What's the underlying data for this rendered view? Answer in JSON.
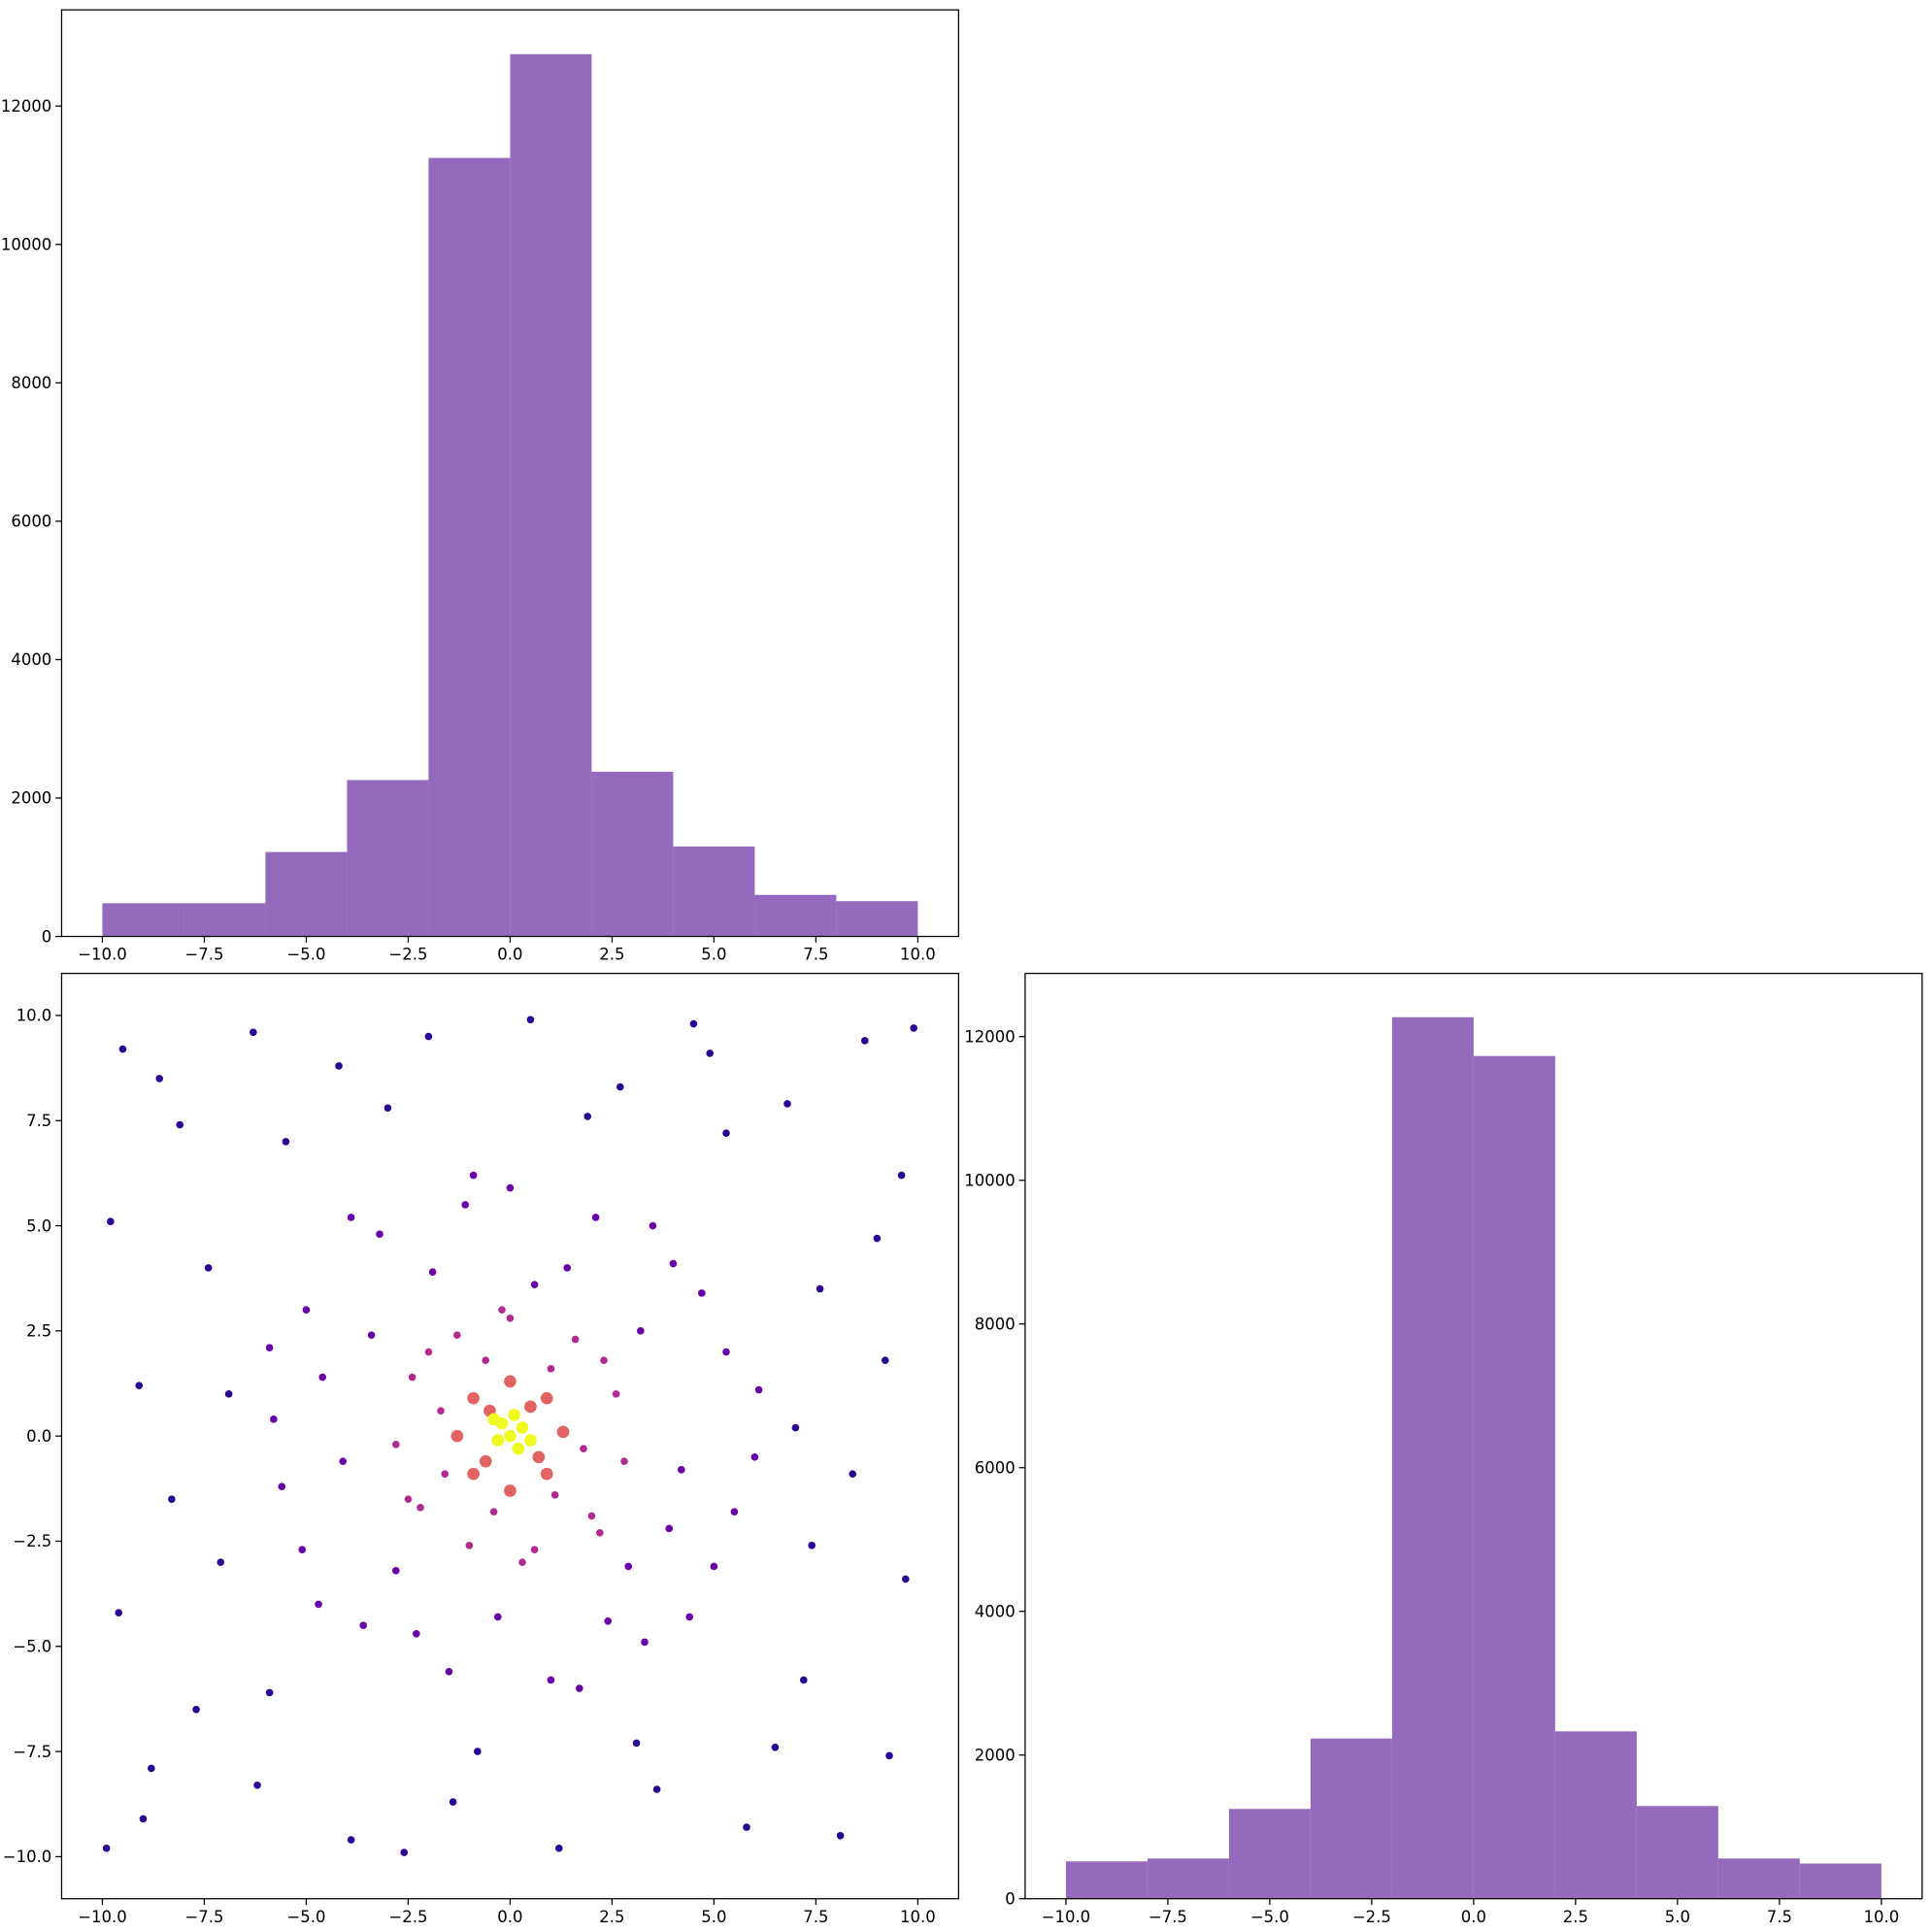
{
  "chart_data": [
    {
      "type": "histogram",
      "color": "#9467bd",
      "bins": [
        -10,
        -8,
        -6,
        -4,
        -2,
        0,
        2,
        4,
        6,
        8,
        10
      ],
      "values": [
        480,
        480,
        1220,
        2260,
        11250,
        12750,
        2380,
        1300,
        600,
        510
      ],
      "xlim": [
        -11,
        11
      ],
      "ylim": [
        0,
        13390
      ],
      "xticks": [
        {
          "value": -10,
          "label": "−10.0"
        },
        {
          "value": -7.5,
          "label": "−7.5"
        },
        {
          "value": -5,
          "label": "−5.0"
        },
        {
          "value": -2.5,
          "label": "−2.5"
        },
        {
          "value": 0,
          "label": "0.0"
        },
        2.5,
        {
          "value": 5,
          "label": "5.0"
        },
        7.5,
        {
          "value": 10,
          "label": "10.0"
        }
      ],
      "yticks": [
        0,
        2000,
        4000,
        6000,
        8000,
        10000,
        12000
      ]
    },
    {
      "type": "scatter",
      "xlim": [
        -11,
        11
      ],
      "ylim": [
        -11,
        11
      ],
      "xticks": [
        {
          "value": -10,
          "label": "−10.0"
        },
        {
          "value": -7.5,
          "label": "−7.5"
        },
        {
          "value": -5,
          "label": "−5.0"
        },
        {
          "value": -2.5,
          "label": "−2.5"
        },
        {
          "value": 0,
          "label": "0.0"
        },
        2.5,
        {
          "value": 5,
          "label": "5.0"
        },
        7.5,
        {
          "value": 10,
          "label": "10.0"
        }
      ],
      "yticks": [
        {
          "value": -10,
          "label": "−10.0"
        },
        {
          "value": -7.5,
          "label": "−7.5"
        },
        {
          "value": -5,
          "label": "−5.0"
        },
        {
          "value": -2.5,
          "label": "−2.5"
        },
        {
          "value": 0,
          "label": "0.0"
        },
        2.5,
        {
          "value": 5,
          "label": "5.0"
        },
        7.5,
        {
          "value": 10,
          "label": "10.0"
        }
      ],
      "series": [
        {
          "color": "#2a0593",
          "x": [
            -9.5,
            -8.1,
            -6.3,
            -4.2,
            -2.0,
            0.5,
            2.7,
            4.9,
            6.8,
            8.7,
            9.6,
            -9.8,
            -7.4,
            7.6,
            9.2,
            -9.1,
            -8.3,
            8.4,
            9.7,
            -9.6,
            -7.7,
            7.2,
            9.3,
            -9.0,
            -6.2,
            -3.9,
            -1.4,
            1.2,
            3.6,
            5.8,
            8.1,
            -5.5,
            5.3,
            -8.8,
            6.5,
            -3.0,
            1.9,
            -0.8,
            3.1,
            9.9,
            -9.9,
            -6.9,
            7.0,
            -7.1,
            7.4,
            -5.9,
            -2.6,
            4.5,
            -8.6,
            9.0
          ],
          "y": [
            9.2,
            7.4,
            9.6,
            8.8,
            9.5,
            9.9,
            8.3,
            9.1,
            7.9,
            9.4,
            6.2,
            5.1,
            4.0,
            3.5,
            1.8,
            1.2,
            -1.5,
            -0.9,
            -3.4,
            -4.2,
            -6.5,
            -5.8,
            -7.6,
            -9.1,
            -8.3,
            -9.6,
            -8.7,
            -9.8,
            -8.4,
            -9.3,
            -9.5,
            7.0,
            7.2,
            -7.9,
            -7.4,
            7.8,
            7.6,
            -7.5,
            -7.3,
            9.7,
            -9.8,
            1.0,
            0.2,
            -3.0,
            -2.6,
            -6.1,
            -9.9,
            9.8,
            8.5,
            4.7
          ]
        },
        {
          "color": "#6a00a8",
          "x": [
            0,
            2.1,
            4.0,
            5.3,
            6.0,
            5.0,
            3.3,
            1.0,
            -1.5,
            -3.6,
            -5.1,
            -5.8,
            -5.0,
            -3.2,
            -1.1,
            1.4,
            3.2,
            4.2,
            2.9,
            -0.3,
            -2.8,
            -4.1,
            -3.4,
            -1.9,
            0.6,
            3.9,
            -4.6,
            2.4,
            -2.3,
            4.7,
            -4.7,
            5.5,
            -5.6,
            1.7,
            -0.9,
            3.5,
            -3.9,
            4.4,
            -5.9,
            6.1
          ],
          "y": [
            5.9,
            5.2,
            4.1,
            2.0,
            -0.5,
            -3.1,
            -4.9,
            -5.8,
            -5.6,
            -4.5,
            -2.7,
            0.4,
            3.0,
            4.8,
            5.5,
            4.0,
            2.5,
            -0.8,
            -3.1,
            -4.3,
            -3.2,
            -0.6,
            2.4,
            3.9,
            3.6,
            -2.2,
            1.4,
            -4.4,
            -4.7,
            3.4,
            -4.0,
            -1.8,
            -1.2,
            -6.0,
            6.2,
            5.0,
            5.2,
            -4.3,
            2.1,
            1.1
          ]
        },
        {
          "color": "#b12a90",
          "x": [
            0,
            1.6,
            2.6,
            2.8,
            2.0,
            0.6,
            -1.0,
            -2.2,
            -2.8,
            -2.4,
            -1.3,
            1.0,
            1.8,
            1.1,
            -0.4,
            -1.6,
            -1.7,
            -0.6,
            2.3,
            -2.0,
            2.2,
            -2.5,
            0.3,
            -0.2
          ],
          "y": [
            2.8,
            2.3,
            1.0,
            -0.6,
            -1.9,
            -2.7,
            -2.6,
            -1.7,
            -0.2,
            1.4,
            2.4,
            1.6,
            -0.3,
            -1.4,
            -1.8,
            -0.9,
            0.6,
            1.8,
            1.8,
            2.0,
            -2.3,
            -1.5,
            -3.0,
            3.0
          ]
        },
        {
          "color": "#e16462",
          "x": [
            0,
            0.9,
            1.3,
            0.9,
            0,
            -0.9,
            -1.3,
            -0.9,
            0.5,
            -0.6,
            0.7,
            -0.5
          ],
          "y": [
            1.3,
            0.9,
            0.1,
            -0.9,
            -1.3,
            -0.9,
            0,
            0.9,
            0.7,
            -0.6,
            -0.5,
            0.6
          ]
        },
        {
          "color": "#f0f921",
          "x": [
            0,
            0.3,
            -0.2,
            0.2,
            -0.3,
            0.1,
            -0.4,
            0.5
          ],
          "y": [
            0,
            0.2,
            0.3,
            -0.3,
            -0.1,
            0.5,
            0.4,
            -0.1
          ]
        }
      ]
    },
    {
      "type": "histogram",
      "color": "#9467bd",
      "bins": [
        -10,
        -8,
        -6,
        -4,
        -2,
        0,
        2,
        4,
        6,
        8,
        10
      ],
      "values": [
        520,
        560,
        1250,
        2230,
        12270,
        11730,
        2330,
        1290,
        560,
        490
      ],
      "xlim": [
        -11,
        11
      ],
      "ylim": [
        0,
        12880
      ],
      "xticks": [
        {
          "value": -10,
          "label": "−10.0"
        },
        {
          "value": -7.5,
          "label": "−7.5"
        },
        {
          "value": -5,
          "label": "−5.0"
        },
        {
          "value": -2.5,
          "label": "−2.5"
        },
        {
          "value": 0,
          "label": "0.0"
        },
        2.5,
        {
          "value": 5,
          "label": "5.0"
        },
        7.5,
        {
          "value": 10,
          "label": "10.0"
        }
      ],
      "yticks": [
        0,
        2000,
        4000,
        6000,
        8000,
        10000,
        12000
      ]
    }
  ]
}
